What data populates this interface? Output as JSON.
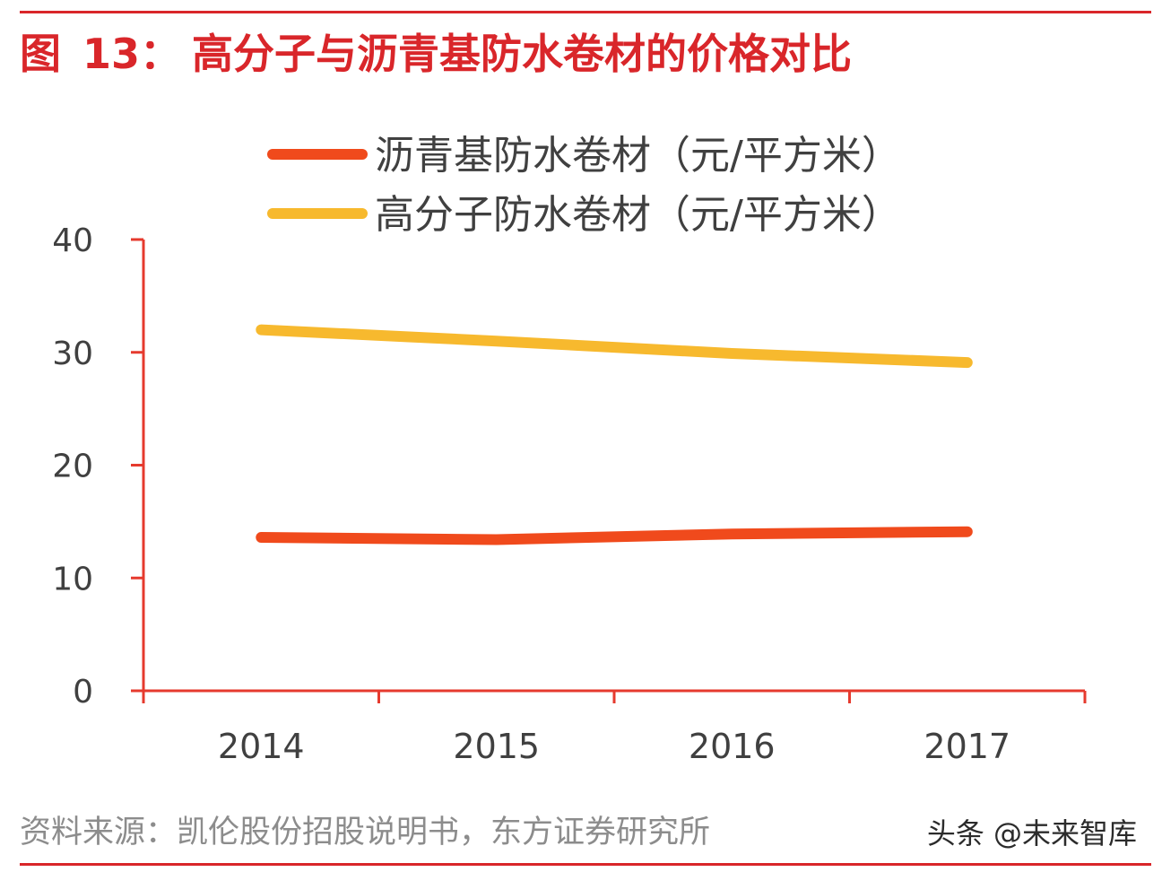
{
  "figure": {
    "label": "图",
    "number": "13：",
    "title": "高分子与沥青基防水卷材的价格对比"
  },
  "source": "资料来源：凯伦股份招股说明书，东方证券研究所",
  "watermark": "头条 @未来智库",
  "colors": {
    "accent": "#d9262a",
    "axis": "#e63a2e",
    "series_asphalt": "#f04a1c",
    "series_polymer": "#f7b92e"
  },
  "chart_data": {
    "type": "line",
    "title": "",
    "xlabel": "",
    "ylabel": "",
    "x": [
      "2014",
      "2015",
      "2016",
      "2017"
    ],
    "ylim": [
      0,
      40
    ],
    "yticks": [
      "0",
      "10",
      "20",
      "30",
      "40"
    ],
    "grid": false,
    "legend_position": "top",
    "series": [
      {
        "name": "沥青基防水卷材（元/平方米）",
        "color": "#f04a1c",
        "values": [
          13.6,
          13.4,
          13.9,
          14.1
        ]
      },
      {
        "name": "高分子防水卷材（元/平方米）",
        "color": "#f7b92e",
        "values": [
          32.0,
          31.0,
          29.9,
          29.1
        ]
      }
    ]
  }
}
